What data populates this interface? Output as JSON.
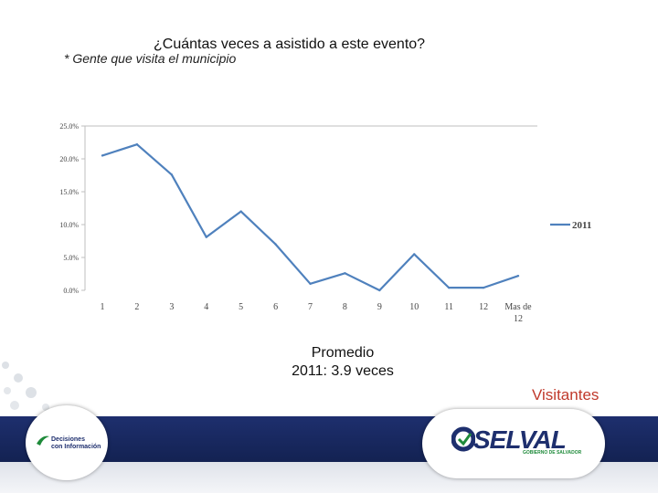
{
  "slide": {
    "title": "¿Cuántas veces a asistido a este evento?",
    "subtitle": "* Gente que visita el municipio",
    "average_line1": "Promedio",
    "average_line2": "2011: 3.9 veces",
    "visitors_label": "Visitantes",
    "logo_left_text_1": "Decisiones",
    "logo_left_text_2": "con Información",
    "logo_right_text": "SELVAL",
    "logo_right_sub": "GOBIERNO DE SALVADOR"
  },
  "colors": {
    "series": "#4f81bd",
    "accent_red": "#c0392b",
    "footer_navy": "#1e2f6e",
    "logo_green": "#1e8a3a"
  },
  "chart_data": {
    "type": "line",
    "categories": [
      "1",
      "2",
      "3",
      "4",
      "5",
      "6",
      "7",
      "8",
      "9",
      "10",
      "11",
      "12",
      "Mas de 12"
    ],
    "series": [
      {
        "name": "2011",
        "values": [
          20.5,
          22.2,
          17.6,
          8.1,
          12.0,
          7.0,
          1.0,
          2.6,
          0.0,
          5.5,
          0.4,
          0.4,
          2.2
        ]
      }
    ],
    "ytick_labels": [
      "0.0%",
      "5.0%",
      "10.0%",
      "15.0%",
      "20.0%",
      "25.0%"
    ],
    "yticks": [
      0,
      5,
      10,
      15,
      20,
      25
    ],
    "ylim": [
      0,
      25
    ],
    "legend_position": "right",
    "grid": false
  }
}
